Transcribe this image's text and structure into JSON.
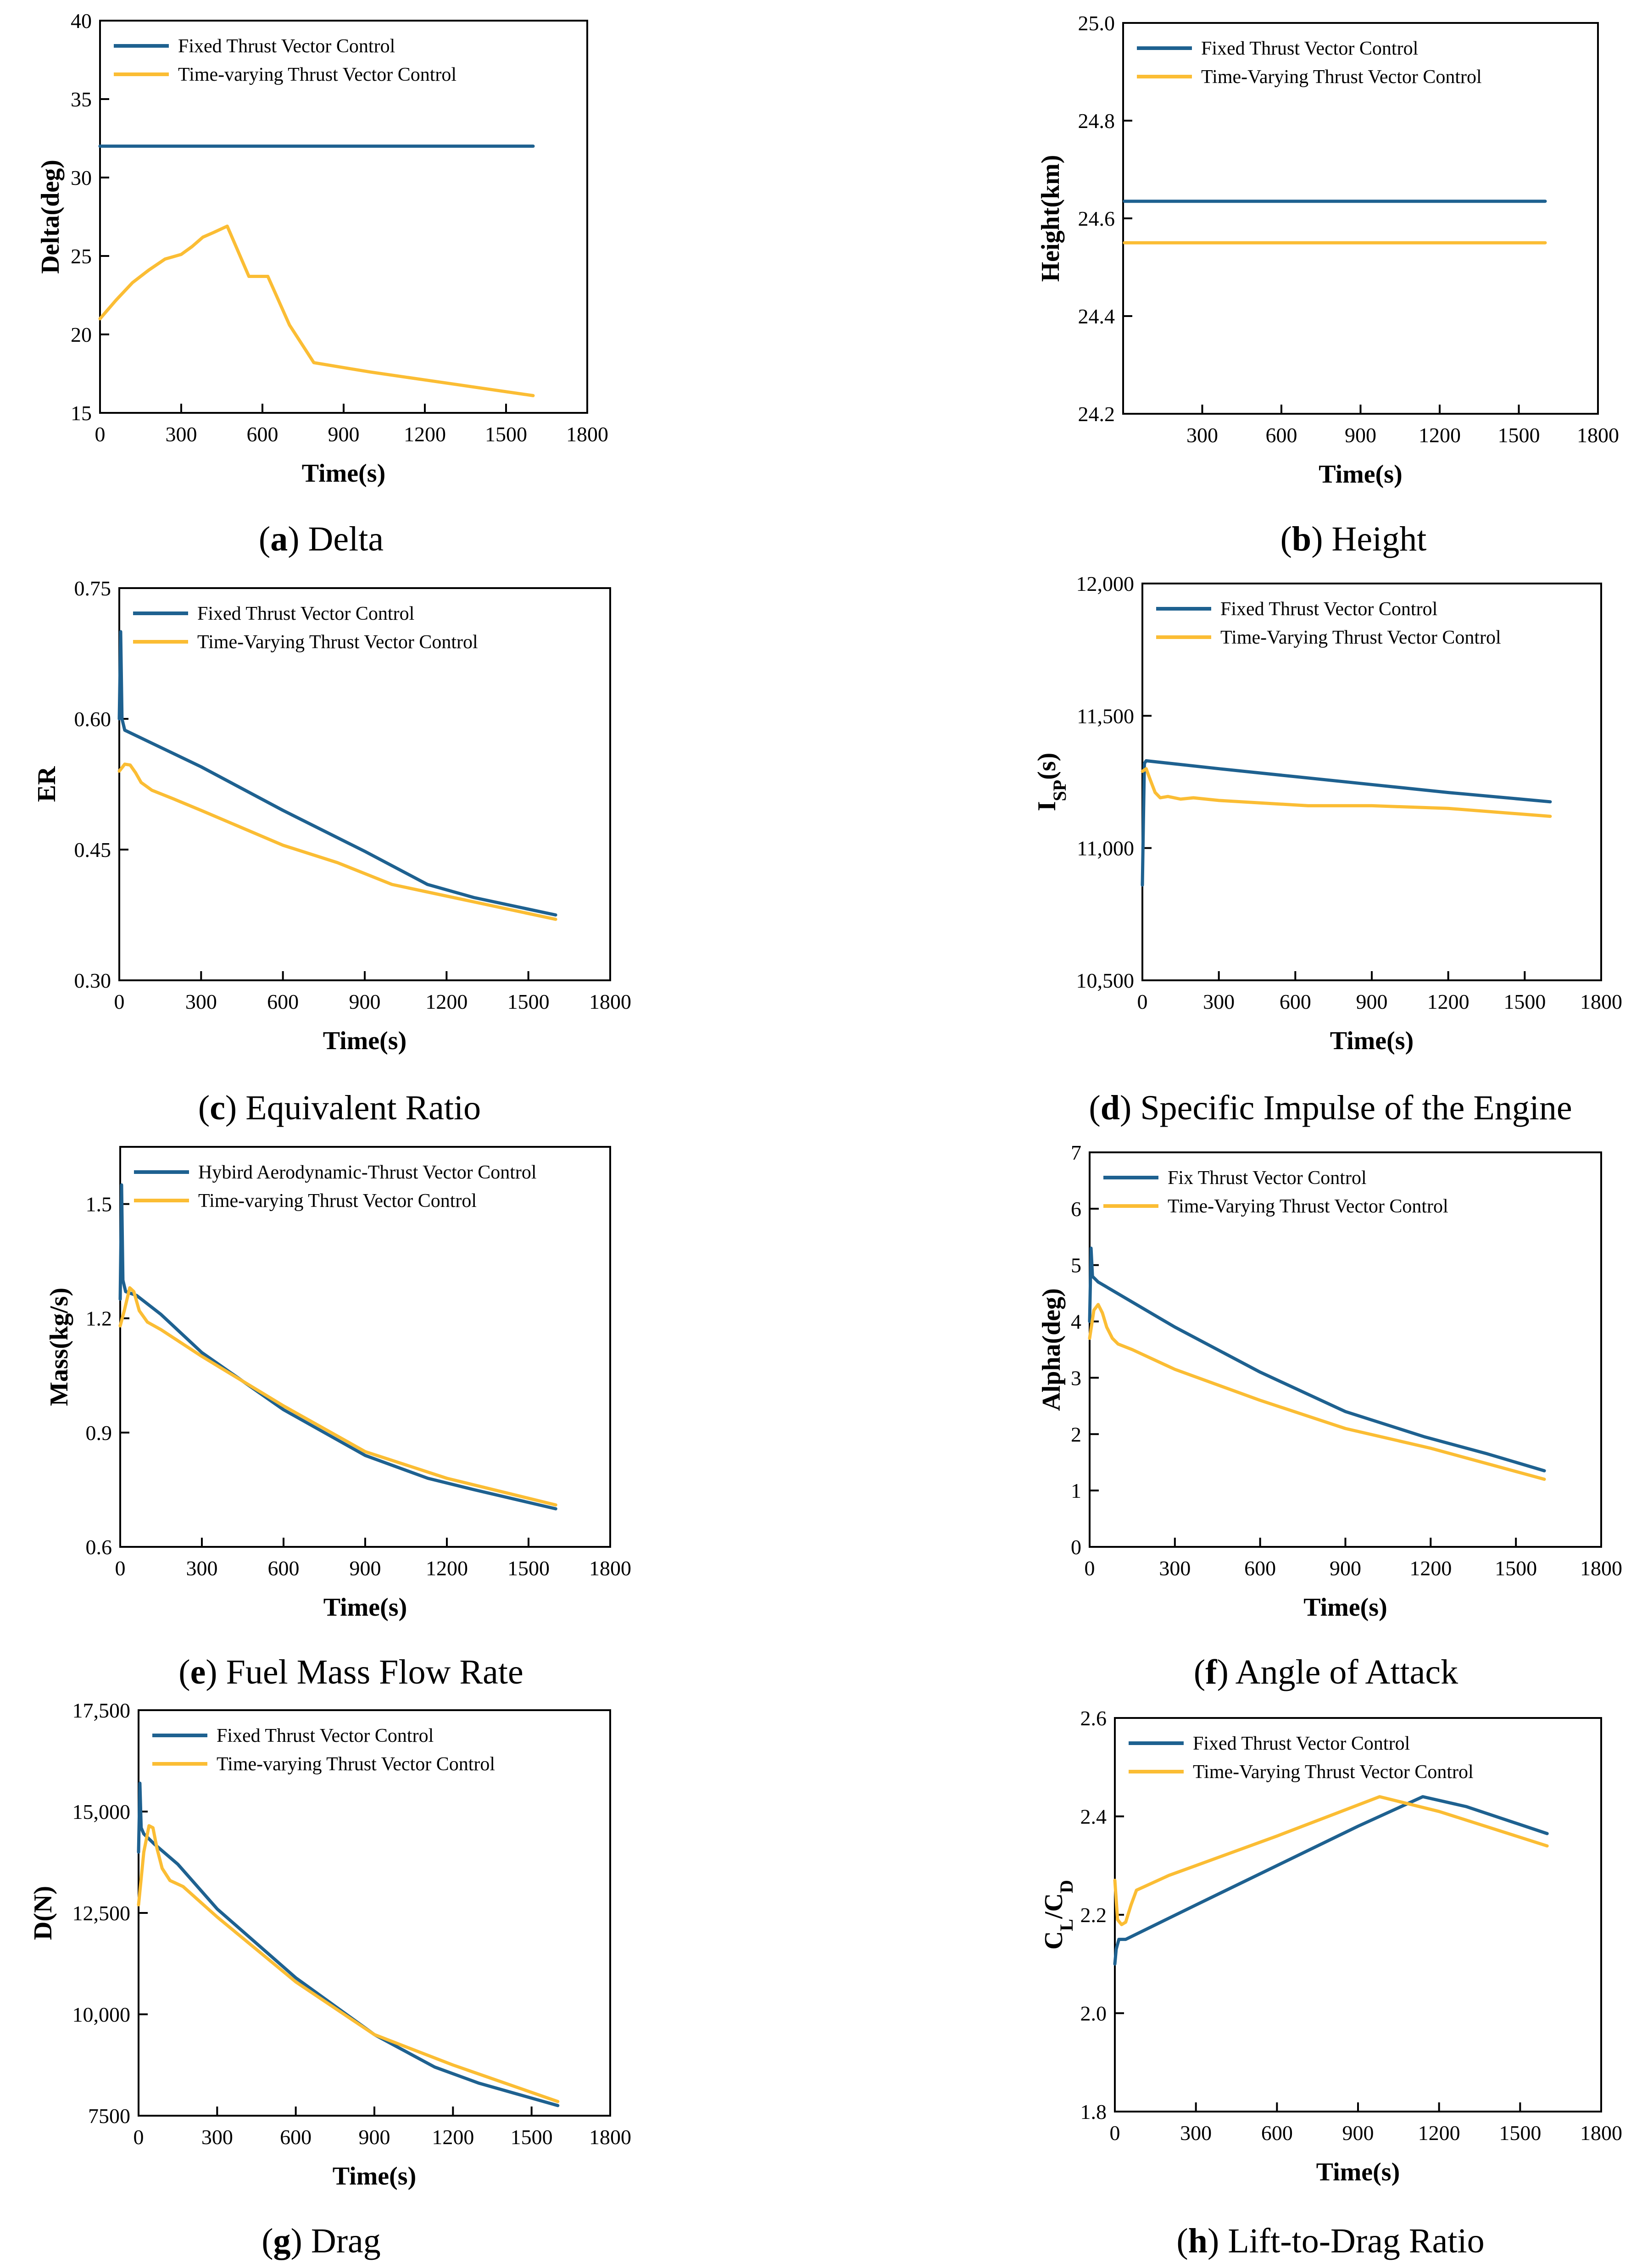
{
  "figure": {
    "colors": {
      "fixed": "#1e6190",
      "timevarying": "#fbbd34",
      "axis": "#000000"
    },
    "panels": [
      {
        "id": "a",
        "caption_letter": "a",
        "caption_text": "Delta",
        "chart_data": {
          "type": "line",
          "title": "(a) Delta",
          "xlabel": "Time(s)",
          "ylabel_main": "Delta(deg)",
          "ylabel_sub": "",
          "ylabel_tail": "",
          "xlim": [
            0,
            1800
          ],
          "ylim": [
            15,
            40
          ],
          "xticks": [
            0,
            300,
            600,
            900,
            1200,
            1500,
            1800
          ],
          "xtick_labels": [
            "0",
            "300",
            "600",
            "900",
            "1200",
            "1500",
            "1800"
          ],
          "yticks": [
            15,
            20,
            25,
            30,
            35,
            40
          ],
          "ytick_labels": [
            "15",
            "20",
            "25",
            "30",
            "35",
            "40"
          ],
          "series": [
            {
              "name": "Fixed Thrust Vector Control",
              "color_key": "fixed",
              "x": [
                0,
                1600
              ],
              "y": [
                32,
                32
              ]
            },
            {
              "name": "Time-varying Thrust Vector Control",
              "color_key": "timevarying",
              "x": [
                0,
                60,
                120,
                180,
                240,
                300,
                340,
                380,
                420,
                470,
                550,
                620,
                700,
                790,
                1000,
                1200,
                1400,
                1600
              ],
              "y": [
                21.0,
                22.2,
                23.3,
                24.1,
                24.8,
                25.1,
                25.6,
                26.2,
                26.5,
                26.9,
                23.7,
                23.7,
                20.6,
                18.2,
                17.6,
                17.1,
                16.6,
                16.1
              ]
            }
          ]
        }
      },
      {
        "id": "b",
        "caption_letter": "b",
        "caption_text": "Height",
        "chart_data": {
          "type": "line",
          "title": "(b) Height",
          "xlabel": "Time(s)",
          "ylabel_main": "Height(km)",
          "ylabel_sub": "",
          "ylabel_tail": "",
          "xlim": [
            0,
            1800
          ],
          "ylim": [
            24.2,
            25.0
          ],
          "xticks": [
            300,
            600,
            900,
            1200,
            1500,
            1800
          ],
          "xtick_labels": [
            "300",
            "600",
            "900",
            "1200",
            "1500",
            "1800"
          ],
          "yticks": [
            24.2,
            24.4,
            24.6,
            24.8,
            25.0
          ],
          "ytick_labels": [
            "24.2",
            "24.4",
            "24.6",
            "24.8",
            "25.0"
          ],
          "series": [
            {
              "name": "Fixed Thrust Vector Control",
              "color_key": "fixed",
              "x": [
                5,
                1600
              ],
              "y": [
                24.635,
                24.635
              ]
            },
            {
              "name": "Time-Varying Thrust Vector Control",
              "color_key": "timevarying",
              "x": [
                5,
                1600
              ],
              "y": [
                24.55,
                24.55
              ]
            }
          ]
        }
      },
      {
        "id": "c",
        "caption_letter": "c",
        "caption_text": "Equivalent Ratio",
        "chart_data": {
          "type": "line",
          "title": "(c) Equivalent Ratio",
          "xlabel": "Time(s)",
          "ylabel_main": "ER",
          "ylabel_sub": "",
          "ylabel_tail": "",
          "xlim": [
            0,
            1800
          ],
          "ylim": [
            0.3,
            0.75
          ],
          "xticks": [
            0,
            300,
            600,
            900,
            1200,
            1500,
            1800
          ],
          "xtick_labels": [
            "0",
            "300",
            "600",
            "900",
            "1200",
            "1500",
            "1800"
          ],
          "yticks": [
            0.3,
            0.45,
            0.6,
            0.75
          ],
          "ytick_labels": [
            "0.30",
            "0.45",
            "0.60",
            "0.75"
          ],
          "series": [
            {
              "name": "Fixed Thrust Vector Control",
              "color_key": "fixed",
              "x": [
                0,
                5,
                10,
                20,
                100,
                300,
                600,
                900,
                1130,
                1300,
                1600
              ],
              "y": [
                0.6,
                0.7,
                0.6,
                0.587,
                0.575,
                0.545,
                0.495,
                0.448,
                0.41,
                0.395,
                0.375
              ]
            },
            {
              "name": "Time-Varying Thrust Vector Control",
              "color_key": "timevarying",
              "x": [
                0,
                20,
                40,
                60,
                80,
                120,
                200,
                300,
                450,
                600,
                800,
                1000,
                1300,
                1600
              ],
              "y": [
                0.54,
                0.548,
                0.547,
                0.538,
                0.527,
                0.518,
                0.508,
                0.495,
                0.475,
                0.455,
                0.435,
                0.41,
                0.39,
                0.37
              ]
            }
          ]
        }
      },
      {
        "id": "d",
        "caption_letter": "d",
        "caption_text": "Specific Impulse of the Engine",
        "chart_data": {
          "type": "line",
          "title": "(d) Specific Impulse of the Engine",
          "xlabel": "Time(s)",
          "ylabel_main": "I",
          "ylabel_sub": "SP",
          "ylabel_tail": "(s)",
          "xlim": [
            0,
            1800
          ],
          "ylim": [
            10500,
            12000
          ],
          "xticks": [
            0,
            300,
            600,
            900,
            1200,
            1500,
            1800
          ],
          "xtick_labels": [
            "0",
            "300",
            "600",
            "900",
            "1200",
            "1500",
            "1800"
          ],
          "yticks": [
            10500,
            11000,
            11500,
            12000
          ],
          "ytick_labels": [
            "10,500",
            "11,000",
            "11,500",
            "12,000"
          ],
          "series": [
            {
              "name": "Fixed Thrust Vector Control",
              "color_key": "fixed",
              "x": [
                0,
                4,
                8,
                15,
                300,
                600,
                900,
                1200,
                1600
              ],
              "y": [
                10860,
                11100,
                11320,
                11330,
                11300,
                11270,
                11240,
                11210,
                11175
              ]
            },
            {
              "name": "Time-Varying Thrust Vector Control",
              "color_key": "timevarying",
              "x": [
                0,
                15,
                30,
                50,
                70,
                100,
                150,
                200,
                300,
                650,
                900,
                1200,
                1600
              ],
              "y": [
                11290,
                11300,
                11260,
                11210,
                11190,
                11195,
                11185,
                11190,
                11180,
                11160,
                11160,
                11150,
                11120
              ]
            }
          ]
        }
      },
      {
        "id": "e",
        "caption_letter": "e",
        "caption_text": "Fuel Mass Flow Rate",
        "chart_data": {
          "type": "line",
          "title": "(e) Fuel Mass Flow Rate",
          "xlabel": "Time(s)",
          "ylabel_main": "Mass(kg/s)",
          "ylabel_sub": "",
          "ylabel_tail": "",
          "xlim": [
            0,
            1800
          ],
          "ylim": [
            0.6,
            1.65
          ],
          "xticks": [
            0,
            300,
            600,
            900,
            1200,
            1500,
            1800
          ],
          "xtick_labels": [
            "0",
            "300",
            "600",
            "900",
            "1200",
            "1500",
            "1800"
          ],
          "yticks": [
            0.6,
            0.9,
            1.2,
            1.5
          ],
          "ytick_labels": [
            "0.6",
            "0.9",
            "1.2",
            "1.5"
          ],
          "series": [
            {
              "name": "Hybird Aerodynamic-Thrust Vector Control",
              "color_key": "fixed",
              "x": [
                0,
                5,
                10,
                20,
                60,
                150,
                300,
                600,
                900,
                1130,
                1300,
                1600
              ],
              "y": [
                1.25,
                1.55,
                1.3,
                1.27,
                1.26,
                1.21,
                1.11,
                0.96,
                0.84,
                0.78,
                0.75,
                0.7
              ]
            },
            {
              "name": "Time-varying Thrust Vector Control",
              "color_key": "timevarying",
              "x": [
                0,
                15,
                35,
                50,
                70,
                100,
                150,
                300,
                600,
                900,
                1200,
                1600
              ],
              "y": [
                1.18,
                1.22,
                1.28,
                1.27,
                1.22,
                1.19,
                1.17,
                1.1,
                0.97,
                0.85,
                0.78,
                0.71
              ]
            }
          ]
        }
      },
      {
        "id": "f",
        "caption_letter": "f",
        "caption_text": "Angle of Attack",
        "chart_data": {
          "type": "line",
          "title": "(f) Angle of Attack",
          "xlabel": "Time(s)",
          "ylabel_main": "Alpha(deg)",
          "ylabel_sub": "",
          "ylabel_tail": "",
          "xlim": [
            0,
            1800
          ],
          "ylim": [
            0,
            7
          ],
          "xticks": [
            0,
            300,
            600,
            900,
            1200,
            1500,
            1800
          ],
          "xtick_labels": [
            "0",
            "300",
            "600",
            "900",
            "1200",
            "1500",
            "1800"
          ],
          "yticks": [
            0,
            1,
            2,
            3,
            4,
            5,
            6,
            7
          ],
          "ytick_labels": [
            "0",
            "1",
            "2",
            "3",
            "4",
            "5",
            "6",
            "7"
          ],
          "series": [
            {
              "name": "Fix Thrust Vector Control",
              "color_key": "fixed",
              "x": [
                0,
                5,
                10,
                30,
                300,
                600,
                900,
                1180,
                1400,
                1600
              ],
              "y": [
                4.0,
                5.3,
                4.8,
                4.7,
                3.9,
                3.1,
                2.4,
                1.95,
                1.65,
                1.35
              ]
            },
            {
              "name": "Time-Varying Thrust Vector Control",
              "color_key": "timevarying",
              "x": [
                0,
                15,
                30,
                45,
                60,
                80,
                100,
                150,
                300,
                600,
                900,
                1200,
                1600
              ],
              "y": [
                3.7,
                4.2,
                4.3,
                4.15,
                3.9,
                3.7,
                3.6,
                3.5,
                3.15,
                2.6,
                2.1,
                1.75,
                1.2
              ]
            }
          ]
        }
      },
      {
        "id": "g",
        "caption_letter": "g",
        "caption_text": "Drag",
        "chart_data": {
          "type": "line",
          "title": "(g) Drag",
          "xlabel": "Time(s)",
          "ylabel_main": "D(N)",
          "ylabel_sub": "",
          "ylabel_tail": "",
          "xlim": [
            0,
            1800
          ],
          "ylim": [
            7500,
            17500
          ],
          "xticks": [
            0,
            300,
            600,
            900,
            1200,
            1500,
            1800
          ],
          "xtick_labels": [
            "0",
            "300",
            "600",
            "900",
            "1200",
            "1500",
            "1800"
          ],
          "yticks": [
            7500,
            10000,
            12500,
            15000,
            17500
          ],
          "ytick_labels": [
            "7500",
            "10,000",
            "12,500",
            "15,000",
            "17,500"
          ],
          "series": [
            {
              "name": "Fixed Thrust Vector Control",
              "color_key": "fixed",
              "x": [
                0,
                5,
                10,
                20,
                60,
                150,
                300,
                600,
                900,
                1130,
                1300,
                1600
              ],
              "y": [
                14000,
                15700,
                14600,
                14450,
                14200,
                13700,
                12600,
                10900,
                9500,
                8700,
                8300,
                7750
              ]
            },
            {
              "name": "Time-varying Thrust Vector Control",
              "color_key": "timevarying",
              "x": [
                0,
                20,
                40,
                55,
                70,
                90,
                120,
                170,
                300,
                600,
                900,
                1200,
                1600
              ],
              "y": [
                12700,
                14000,
                14650,
                14600,
                14100,
                13600,
                13300,
                13150,
                12400,
                10800,
                9500,
                8750,
                7850
              ]
            }
          ]
        }
      },
      {
        "id": "h",
        "caption_letter": "h",
        "caption_text": "Lift-to-Drag Ratio",
        "chart_data": {
          "type": "line",
          "title": "(h) Lift-to-Drag Ratio",
          "xlabel": "Time(s)",
          "ylabel_main": "C",
          "ylabel_sub": "L",
          "ylabel_tail": "/C",
          "ylabel_sub2": "D",
          "xlim": [
            0,
            1800
          ],
          "ylim": [
            1.8,
            2.6
          ],
          "xticks": [
            0,
            300,
            600,
            900,
            1200,
            1500,
            1800
          ],
          "xtick_labels": [
            "0",
            "300",
            "600",
            "900",
            "1200",
            "1500",
            "1800"
          ],
          "yticks": [
            1.8,
            2.0,
            2.2,
            2.4,
            2.6
          ],
          "ytick_labels": [
            "1.8",
            "2.0",
            "2.2",
            "2.4",
            "2.6"
          ],
          "series": [
            {
              "name": "Fixed Thrust Vector Control",
              "color_key": "fixed",
              "x": [
                0,
                5,
                15,
                40,
                300,
                600,
                900,
                1140,
                1300,
                1600
              ],
              "y": [
                2.1,
                2.13,
                2.15,
                2.15,
                2.22,
                2.3,
                2.38,
                2.44,
                2.42,
                2.365
              ]
            },
            {
              "name": "Time-Varying Thrust Vector Control",
              "color_key": "timevarying",
              "x": [
                0,
                10,
                25,
                40,
                60,
                80,
                120,
                200,
                300,
                600,
                980,
                1200,
                1600
              ],
              "y": [
                2.27,
                2.19,
                2.18,
                2.185,
                2.22,
                2.25,
                2.26,
                2.28,
                2.3,
                2.36,
                2.44,
                2.41,
                2.34
              ]
            }
          ]
        }
      }
    ]
  }
}
